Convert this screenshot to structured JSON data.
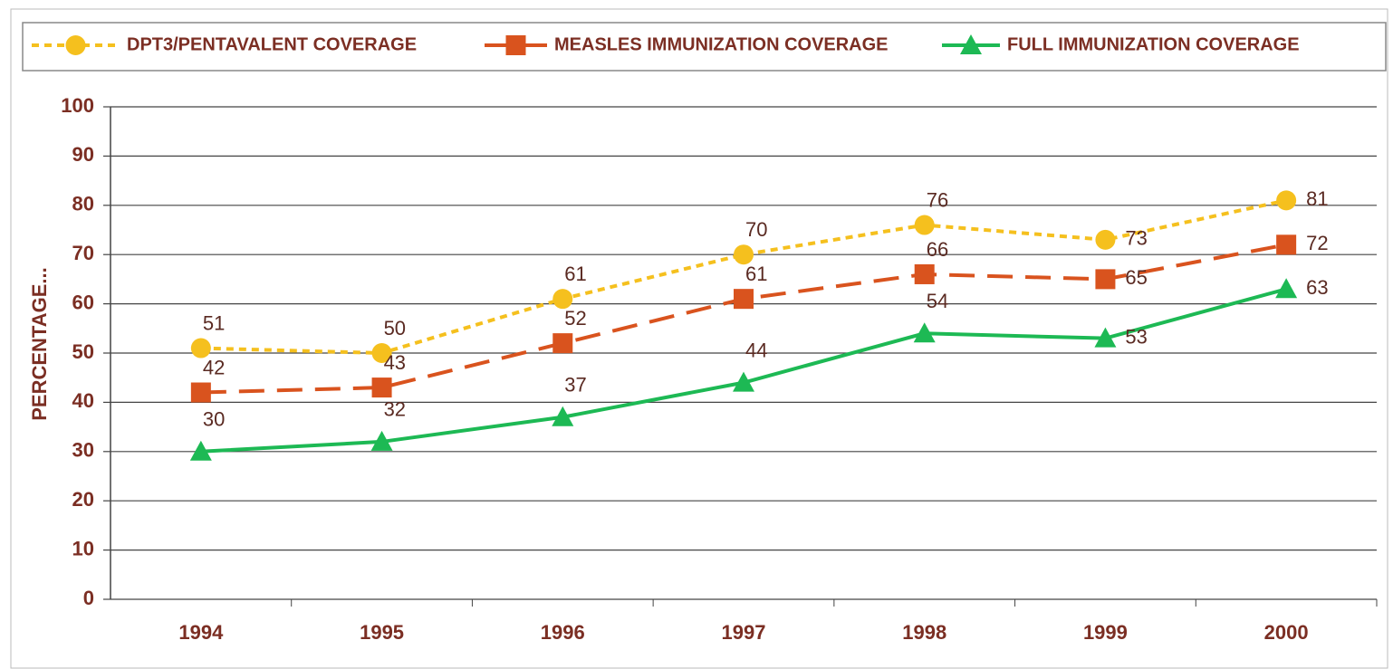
{
  "chart_data": {
    "type": "line",
    "y_label": "PERCENTAGE...",
    "categories": [
      "1994",
      "1995",
      "1996",
      "1997",
      "1998",
      "1999",
      "2000"
    ],
    "series": [
      {
        "name": "DPT3/PENTAVALENT COVERAGE",
        "color": "#f5c01e",
        "values": [
          51,
          50,
          61,
          70,
          76,
          73,
          81
        ]
      },
      {
        "name": "MEASLES IMMUNIZATION COVERAGE",
        "color": "#d9531e",
        "values": [
          42,
          43,
          52,
          61,
          66,
          65,
          72
        ]
      },
      {
        "name": "FULL IMMUNIZATION COVERAGE",
        "color": "#1db954",
        "values": [
          30,
          32,
          37,
          44,
          54,
          53,
          63
        ]
      }
    ],
    "ylim": [
      0,
      100
    ],
    "yticks": [
      0,
      10,
      20,
      30,
      40,
      50,
      60,
      70,
      80,
      90,
      100
    ],
    "grid": true,
    "legend": "top"
  }
}
